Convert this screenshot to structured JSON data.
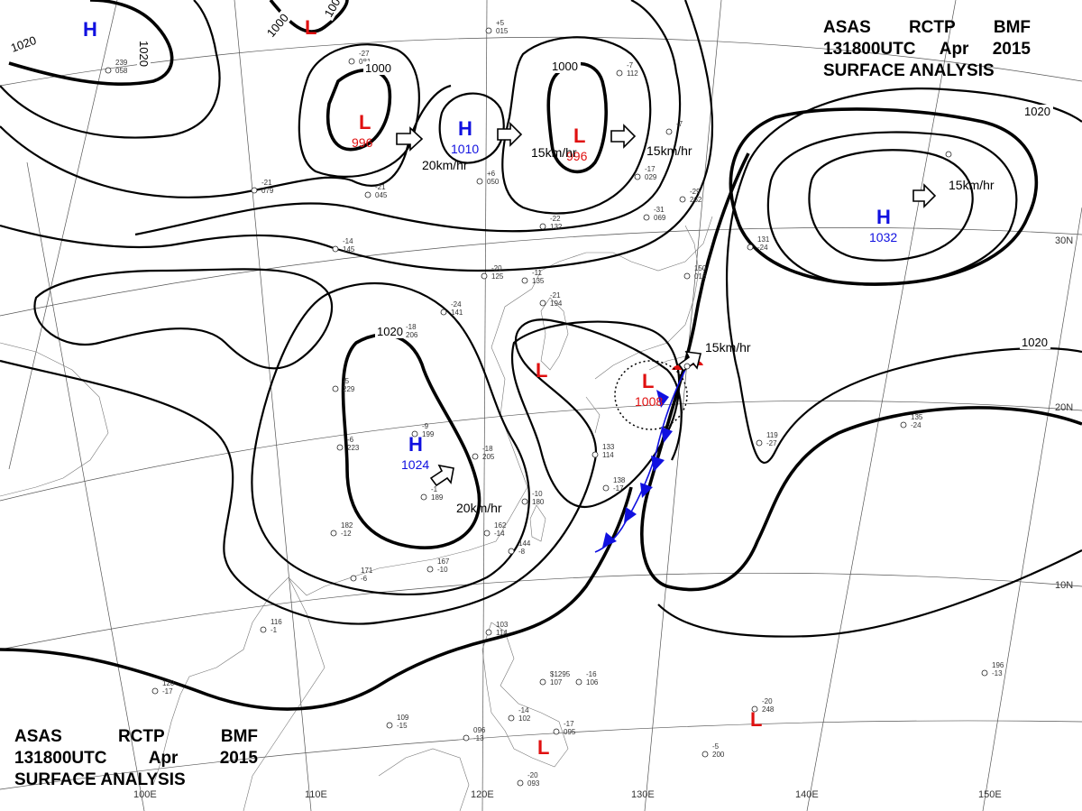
{
  "titles": {
    "top": {
      "line1": [
        "ASAS",
        "RCTP",
        "BMF"
      ],
      "line2": [
        "131800UTC",
        "Apr",
        "2015"
      ],
      "line3": "SURFACE ANALYSIS"
    },
    "bottom": {
      "line1": [
        "ASAS",
        "RCTP",
        "BMF"
      ],
      "line2": [
        "131800UTC",
        "Apr",
        "2015"
      ],
      "line3": "SURFACE ANALYSIS"
    }
  },
  "latitude_labels": [
    "30N",
    "20N",
    "10N"
  ],
  "longitude_labels": [
    "100E",
    "110E",
    "120E",
    "130E",
    "140E",
    "150E"
  ],
  "isobar_labels": [
    "1020",
    "1020",
    "1000",
    "1000",
    "1000",
    "1000",
    "1020",
    "1020",
    "1020"
  ],
  "pressure_centers": [
    {
      "type": "H",
      "value": ""
    },
    {
      "type": "L",
      "value": ""
    },
    {
      "type": "L",
      "value": "996"
    },
    {
      "type": "H",
      "value": "1010"
    },
    {
      "type": "L",
      "value": "996"
    },
    {
      "type": "H",
      "value": "1032"
    },
    {
      "type": "H",
      "value": "1024"
    },
    {
      "type": "L",
      "value": ""
    },
    {
      "type": "L",
      "value": "1008"
    },
    {
      "type": "L",
      "value": ""
    },
    {
      "type": "L",
      "value": ""
    }
  ],
  "movement_labels": [
    "20km/hr",
    "15km/hr",
    "15km/hr",
    "15km/hr",
    "20km/hr",
    "15km/hr"
  ],
  "colors": {
    "high": "#1010e0",
    "low": "#e01010",
    "cold_front": "#1010e0",
    "warm_front": "#e01010"
  },
  "station_labels": [
    "239",
    "058",
    "+5",
    "015",
    "-27",
    "081",
    "-21",
    "079",
    "-21",
    "045",
    "+6",
    "050",
    "-22",
    "132",
    "-14",
    "145",
    "-20",
    "125",
    "-11",
    "135",
    "-24",
    "141",
    "-21",
    "194",
    "-18",
    "206",
    "-5",
    "229",
    "-9",
    "199",
    "-18",
    "205",
    "-6",
    "223",
    "-1",
    "189",
    "-10",
    "180",
    "182",
    "-12",
    "171",
    "-6",
    "167",
    "-10",
    "162",
    "-14",
    "144",
    "-8",
    "133",
    "114",
    "138",
    "-17",
    "116",
    "-1",
    "120",
    "-17",
    "109",
    "-15",
    "096",
    "-13",
    "103",
    "114",
    "$1295",
    "107",
    "-16",
    "106",
    "-14",
    "102",
    "-17",
    "095",
    "-20",
    "093",
    "-5",
    "200",
    "-20",
    "248",
    "196",
    "-13",
    "131",
    "-24",
    "119",
    "-27",
    "135",
    "-24",
    "150",
    "016",
    "-17",
    "029",
    "-31",
    "069",
    "-29",
    "262",
    "-7",
    "112",
    "-7"
  ]
}
